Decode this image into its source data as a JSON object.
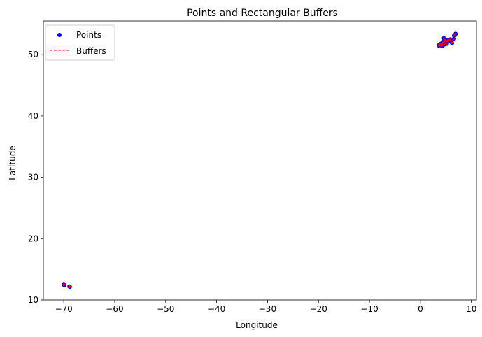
{
  "chart_data": {
    "type": "scatter",
    "title": "Points and Rectangular Buffers",
    "xlabel": "Longitude",
    "ylabel": "Latitude",
    "xlim": [
      -74,
      11
    ],
    "ylim": [
      10,
      55.5
    ],
    "xticks": [
      -70,
      -60,
      -50,
      -40,
      -30,
      -20,
      -10,
      0,
      10
    ],
    "yticks": [
      10,
      20,
      30,
      40,
      50
    ],
    "grid": false,
    "legend_position": "top-left",
    "buffer_half_size_deg": 0.12,
    "series": [
      {
        "name": "Points",
        "marker": "circle",
        "color": "#0000ff",
        "points": [
          [
            -70.0,
            12.5
          ],
          [
            -69.9,
            12.45
          ],
          [
            -68.9,
            12.2
          ],
          [
            -68.8,
            12.15
          ],
          [
            3.6,
            51.5
          ],
          [
            3.7,
            51.6
          ],
          [
            3.8,
            51.7
          ],
          [
            3.9,
            51.55
          ],
          [
            4.0,
            51.8
          ],
          [
            4.1,
            51.5
          ],
          [
            4.2,
            51.65
          ],
          [
            4.3,
            51.4
          ],
          [
            4.4,
            51.9
          ],
          [
            4.5,
            51.6
          ],
          [
            4.5,
            52.1
          ],
          [
            4.6,
            52.7
          ],
          [
            4.7,
            52.4
          ],
          [
            4.8,
            52.0
          ],
          [
            4.9,
            52.35
          ],
          [
            4.9,
            51.7
          ],
          [
            5.0,
            52.2
          ],
          [
            5.1,
            52.05
          ],
          [
            5.2,
            51.8
          ],
          [
            5.3,
            52.3
          ],
          [
            5.5,
            52.4
          ],
          [
            5.6,
            52.2
          ],
          [
            5.9,
            52.5
          ],
          [
            6.1,
            52.2
          ],
          [
            6.2,
            51.9
          ],
          [
            6.6,
            52.6
          ],
          [
            6.8,
            53.2
          ],
          [
            6.9,
            53.4
          ],
          [
            6.6,
            53.1
          ]
        ]
      },
      {
        "name": "Buffers",
        "line_style": "dashed",
        "color": "#ff0000"
      }
    ]
  }
}
